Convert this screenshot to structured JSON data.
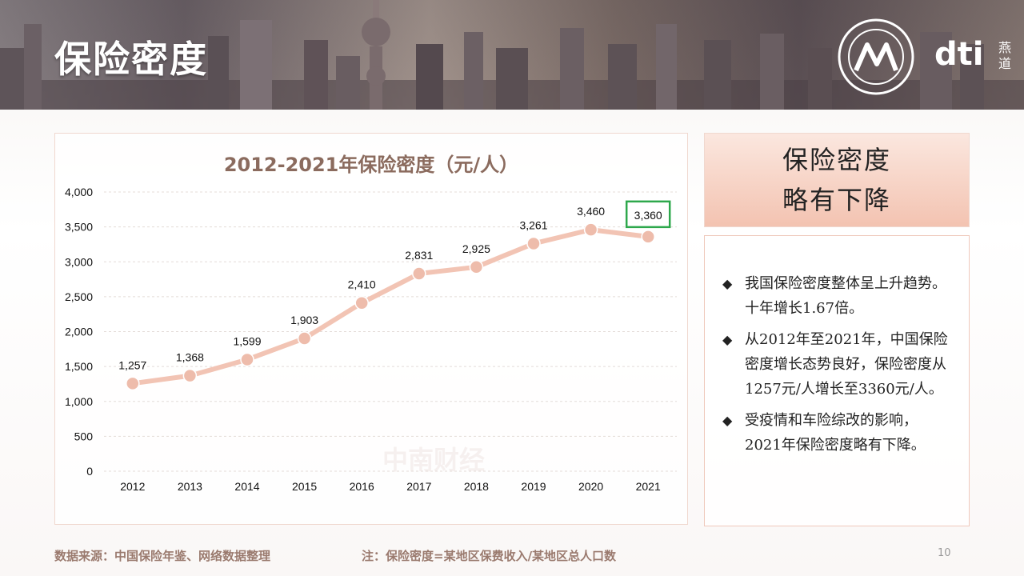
{
  "header": {
    "title": "保险密度",
    "brand": "dti",
    "brand_side": "燕道"
  },
  "chart_data": {
    "type": "line",
    "title": "2012-2021年保险密度（元/人）",
    "categories": [
      "2012",
      "2013",
      "2014",
      "2015",
      "2016",
      "2017",
      "2018",
      "2019",
      "2020",
      "2021"
    ],
    "values": [
      1257,
      1368,
      1599,
      1903,
      2410,
      2831,
      2925,
      3261,
      3460,
      3360
    ],
    "value_labels": [
      "1,257",
      "1,368",
      "1,599",
      "1,903",
      "2,410",
      "2,831",
      "2,925",
      "3,261",
      "3,460",
      "3,360"
    ],
    "ylim": [
      0,
      4000
    ],
    "yticks": [
      0,
      500,
      1000,
      1500,
      2000,
      2500,
      3000,
      3500,
      4000
    ],
    "ytick_labels": [
      "0",
      "500",
      "1,000",
      "1,500",
      "2,000",
      "2,500",
      "3,000",
      "3,500",
      "4,000"
    ],
    "grid": true,
    "highlight_index": 9,
    "colors": {
      "line": "#f2c4b4",
      "marker": "#eebcab",
      "marker_stroke": "#ffffff",
      "highlight": "#2ea84c",
      "axis_text": "#111111"
    }
  },
  "watermark": "中南财经",
  "summary": {
    "line1": "保险密度",
    "line2": "略有下降"
  },
  "bullets": [
    "我国保险密度整体呈上升趋势。十年增长1.67倍。",
    "从2012年至2021年，中国保险密度增长态势良好，保险密度从1257元/人增长至3360元/人。",
    "受疫情和车险综改的影响，2021年保险密度略有下降。"
  ],
  "footer": {
    "source": "数据来源：中国保险年鉴、网络数据整理",
    "note": "注：保险密度=某地区保费收入/某地区总人口数",
    "page": "10"
  }
}
